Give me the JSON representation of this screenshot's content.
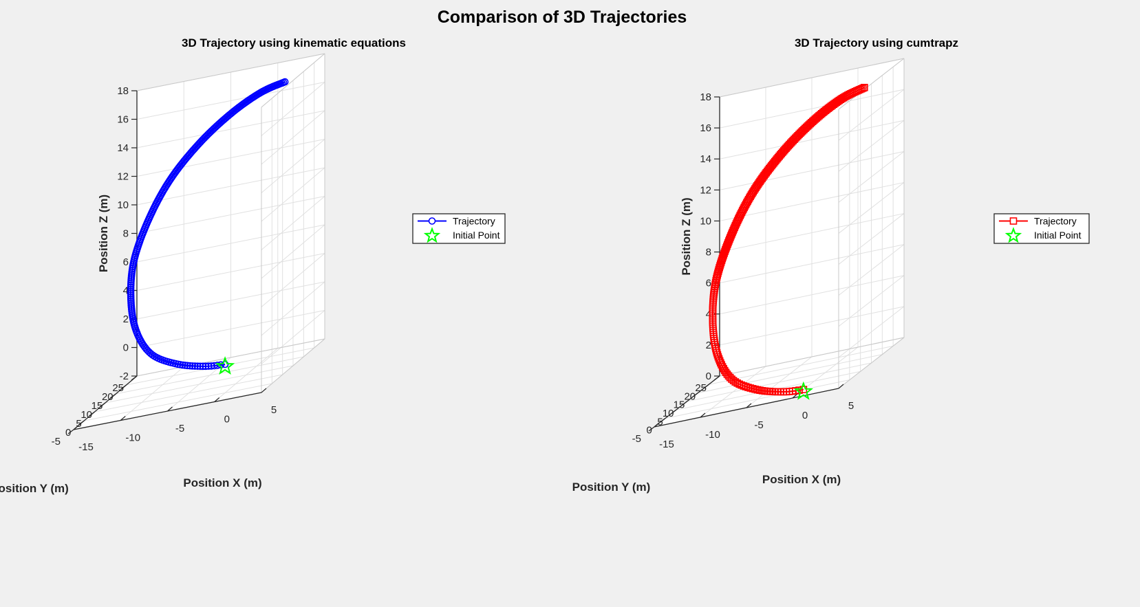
{
  "figure": {
    "title": "Comparison of 3D Trajectories",
    "background": "#f0f0f0"
  },
  "chart_data": [
    {
      "type": "line",
      "projection": "3d",
      "title": "3D Trajectory using kinematic equations",
      "xlabel": "Position X (m)",
      "ylabel": "Position Y (m)",
      "zlabel": "Position Z (m)",
      "xlim": [
        -15,
        5
      ],
      "ylim": [
        -5,
        25
      ],
      "zlim": [
        -2,
        18
      ],
      "xticks": [
        "-15",
        "-10",
        "-5",
        "0",
        "5"
      ],
      "yticks": [
        "-5",
        "0",
        "5",
        "10",
        "15",
        "20",
        "25"
      ],
      "zticks": [
        "-2",
        "0",
        "2",
        "4",
        "6",
        "8",
        "10",
        "12",
        "14",
        "16",
        "18"
      ],
      "grid": true,
      "legend_position": "right",
      "series": [
        {
          "name": "Trajectory",
          "color": "#0000ff",
          "marker": "circle",
          "points": [
            {
              "x": 0.0,
              "y": 0.0,
              "z": 0.0
            },
            {
              "x": -2.5,
              "y": 1.5,
              "z": 0.0
            },
            {
              "x": -6.0,
              "y": 4.0,
              "z": 0.3
            },
            {
              "x": -9.5,
              "y": 7.5,
              "z": 1.0
            },
            {
              "x": -12.0,
              "y": 11.5,
              "z": 2.4
            },
            {
              "x": -13.5,
              "y": 15.5,
              "z": 4.3
            },
            {
              "x": -14.0,
              "y": 19.0,
              "z": 6.6
            },
            {
              "x": -13.0,
              "y": 21.5,
              "z": 9.1
            },
            {
              "x": -11.0,
              "y": 23.0,
              "z": 11.5
            },
            {
              "x": -8.0,
              "y": 23.5,
              "z": 13.6
            },
            {
              "x": -4.5,
              "y": 23.0,
              "z": 15.3
            },
            {
              "x": -1.0,
              "y": 21.5,
              "z": 16.5
            },
            {
              "x": 2.0,
              "y": 19.5,
              "z": 17.1
            }
          ]
        },
        {
          "name": "Initial Point",
          "color": "#00ff00",
          "marker": "pentagram",
          "points": [
            {
              "x": 0.0,
              "y": 0.0,
              "z": 0.0
            }
          ]
        }
      ]
    },
    {
      "type": "line",
      "projection": "3d",
      "title": "3D Trajectory using cumtrapz",
      "xlabel": "Position X (m)",
      "ylabel": "Position Y (m)",
      "zlabel": "Position Z (m)",
      "xlim": [
        -15,
        5
      ],
      "ylim": [
        -5,
        25
      ],
      "zlim": [
        0,
        18
      ],
      "xticks": [
        "-15",
        "-10",
        "-5",
        "0",
        "5"
      ],
      "yticks": [
        "-5",
        "0",
        "5",
        "10",
        "15",
        "20",
        "25"
      ],
      "zticks": [
        "0",
        "2",
        "4",
        "6",
        "8",
        "10",
        "12",
        "14",
        "16",
        "18"
      ],
      "grid": true,
      "legend_position": "right",
      "series": [
        {
          "name": "Trajectory",
          "color": "#ff0000",
          "marker": "square",
          "points": [
            {
              "x": 0.0,
              "y": 0.0,
              "z": 0.0
            },
            {
              "x": -2.5,
              "y": 1.5,
              "z": 0.0
            },
            {
              "x": -6.0,
              "y": 4.0,
              "z": 0.3
            },
            {
              "x": -9.5,
              "y": 7.5,
              "z": 1.0
            },
            {
              "x": -12.0,
              "y": 11.5,
              "z": 2.4
            },
            {
              "x": -13.5,
              "y": 15.5,
              "z": 4.3
            },
            {
              "x": -14.0,
              "y": 19.0,
              "z": 6.6
            },
            {
              "x": -13.0,
              "y": 21.5,
              "z": 9.1
            },
            {
              "x": -11.0,
              "y": 23.0,
              "z": 11.5
            },
            {
              "x": -8.0,
              "y": 23.5,
              "z": 13.6
            },
            {
              "x": -4.5,
              "y": 23.0,
              "z": 15.3
            },
            {
              "x": -1.0,
              "y": 21.5,
              "z": 16.5
            },
            {
              "x": 2.0,
              "y": 19.5,
              "z": 17.1
            }
          ]
        },
        {
          "name": "Initial Point",
          "color": "#00ff00",
          "marker": "pentagram",
          "points": [
            {
              "x": 0.0,
              "y": 0.0,
              "z": 0.0
            }
          ]
        }
      ]
    }
  ]
}
